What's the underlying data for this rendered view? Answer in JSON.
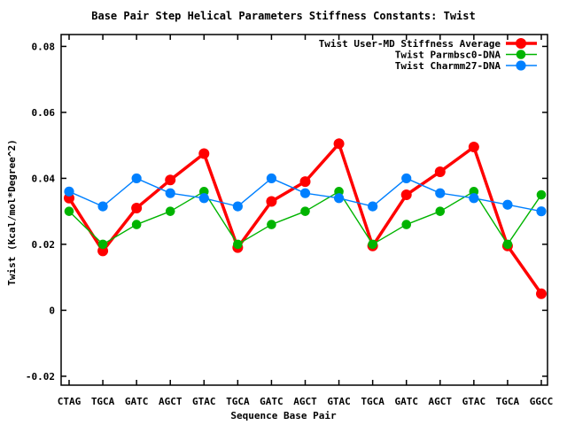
{
  "page": {
    "background": "#ffffff",
    "frame_color": "#000000"
  },
  "chart_data": {
    "type": "line",
    "title": "Base Pair Step Helical Parameters Stiffness Constants: Twist",
    "xlabel": "Sequence Base Pair",
    "ylabel": "Twist (Kcal/mol*Degree^2)",
    "categories": [
      "CTAG",
      "TGCA",
      "GATC",
      "AGCT",
      "GTAC",
      "TGCA",
      "GATC",
      "AGCT",
      "GTAC",
      "TGCA",
      "GATC",
      "AGCT",
      "GTAC",
      "TGCA",
      "GGCC"
    ],
    "series": [
      {
        "name": "Twist User-MD Stiffness Average",
        "color": "#ff0000",
        "line_width": 3.5,
        "marker_radius": 6,
        "values": [
          0.034,
          0.018,
          0.031,
          0.0395,
          0.0475,
          0.019,
          0.033,
          0.039,
          0.0505,
          0.0195,
          0.035,
          0.042,
          0.0495,
          0.0195,
          0.005
        ]
      },
      {
        "name": "Twist Parmbsc0-DNA",
        "color": "#00b400",
        "line_width": 1.4,
        "marker_radius": 5.3,
        "values": [
          0.03,
          0.02,
          0.026,
          0.03,
          0.036,
          0.02,
          0.026,
          0.03,
          0.036,
          0.02,
          0.026,
          0.03,
          0.036,
          0.02,
          0.035
        ]
      },
      {
        "name": "Twist Charmm27-DNA",
        "color": "#0080ff",
        "line_width": 1.4,
        "marker_radius": 5.6,
        "values": [
          0.036,
          0.0315,
          0.04,
          0.0355,
          0.034,
          0.0315,
          0.04,
          0.0355,
          0.034,
          0.0315,
          0.04,
          0.0355,
          0.034,
          0.032,
          0.03
        ]
      }
    ],
    "y_ticks": [
      0.08,
      0.06,
      0.04,
      0.02,
      0,
      -0.02
    ],
    "y_tick_labels": [
      "0.08",
      "0.06",
      "0.04",
      "0.02",
      "0",
      "-0.02"
    ],
    "ylim": [
      -0.0227,
      0.0836
    ],
    "grid": false,
    "legend_position": "top-right-inside"
  }
}
